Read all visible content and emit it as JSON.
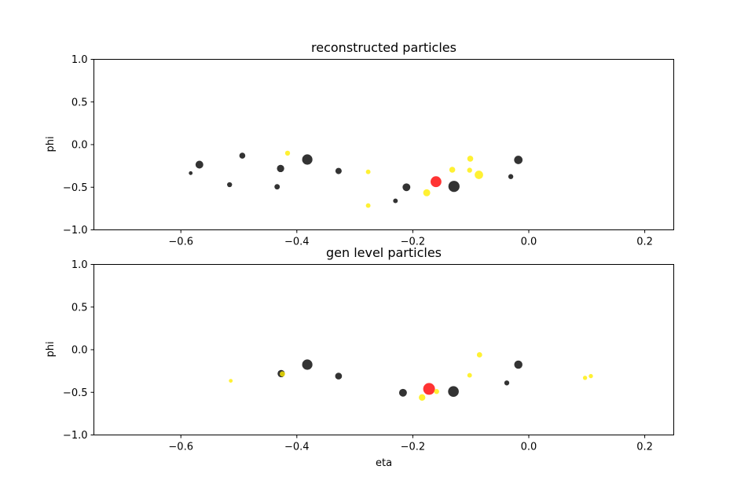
{
  "colors": {
    "charged": "#000000",
    "photon": "#ffee00",
    "leading": "#ff0000"
  },
  "chart_data": [
    {
      "type": "scatter",
      "title": "reconstructed particles",
      "xlabel": "",
      "ylabel": "phi",
      "xlim": [
        -0.75,
        0.25
      ],
      "ylim": [
        -1.0,
        1.0
      ],
      "xticks": [
        -0.6,
        -0.4,
        -0.2,
        0.0,
        0.2
      ],
      "xtick_labels": [
        "−0.6",
        "−0.4",
        "−0.2",
        "0.0",
        "0.2"
      ],
      "yticks": [
        1.0,
        0.5,
        0.0,
        -0.5,
        -1.0
      ],
      "ytick_labels": [
        "1.0",
        "0.5",
        "0.0",
        "−0.5",
        "−1.0"
      ],
      "grid": false,
      "marker_size_encodes": "particle pT (relative)",
      "points": [
        {
          "eta": -0.583,
          "phi": -0.335,
          "size": 0.4,
          "kind": "charged"
        },
        {
          "eta": -0.568,
          "phi": -0.235,
          "size": 1.7,
          "kind": "charged"
        },
        {
          "eta": -0.516,
          "phi": -0.47,
          "size": 0.7,
          "kind": "charged"
        },
        {
          "eta": -0.494,
          "phi": -0.13,
          "size": 1.0,
          "kind": "charged"
        },
        {
          "eta": -0.434,
          "phi": -0.495,
          "size": 0.8,
          "kind": "charged"
        },
        {
          "eta": -0.428,
          "phi": -0.28,
          "size": 1.5,
          "kind": "charged"
        },
        {
          "eta": -0.416,
          "phi": -0.1,
          "size": 0.7,
          "kind": "photon"
        },
        {
          "eta": -0.382,
          "phi": -0.175,
          "size": 3.0,
          "kind": "charged"
        },
        {
          "eta": -0.328,
          "phi": -0.31,
          "size": 1.1,
          "kind": "charged"
        },
        {
          "eta": -0.277,
          "phi": -0.32,
          "size": 0.6,
          "kind": "photon"
        },
        {
          "eta": -0.277,
          "phi": -0.715,
          "size": 0.6,
          "kind": "photon"
        },
        {
          "eta": -0.23,
          "phi": -0.66,
          "size": 0.6,
          "kind": "charged"
        },
        {
          "eta": -0.211,
          "phi": -0.5,
          "size": 1.7,
          "kind": "charged"
        },
        {
          "eta": -0.176,
          "phi": -0.565,
          "size": 1.4,
          "kind": "photon"
        },
        {
          "eta": -0.16,
          "phi": -0.435,
          "size": 3.3,
          "kind": "leading"
        },
        {
          "eta": -0.132,
          "phi": -0.295,
          "size": 1.0,
          "kind": "photon"
        },
        {
          "eta": -0.129,
          "phi": -0.49,
          "size": 3.5,
          "kind": "charged"
        },
        {
          "eta": -0.102,
          "phi": -0.3,
          "size": 0.7,
          "kind": "photon"
        },
        {
          "eta": -0.101,
          "phi": -0.165,
          "size": 1.0,
          "kind": "photon"
        },
        {
          "eta": -0.086,
          "phi": -0.355,
          "size": 2.0,
          "kind": "photon"
        },
        {
          "eta": -0.031,
          "phi": -0.375,
          "size": 0.7,
          "kind": "charged"
        },
        {
          "eta": -0.018,
          "phi": -0.18,
          "size": 2.0,
          "kind": "charged"
        }
      ]
    },
    {
      "type": "scatter",
      "title": "gen level particles",
      "xlabel": "eta",
      "ylabel": "phi",
      "xlim": [
        -0.75,
        0.25
      ],
      "ylim": [
        -1.0,
        1.0
      ],
      "xticks": [
        -0.6,
        -0.4,
        -0.2,
        0.0,
        0.2
      ],
      "xtick_labels": [
        "−0.6",
        "−0.4",
        "−0.2",
        "0.0",
        "0.2"
      ],
      "yticks": [
        1.0,
        0.5,
        0.0,
        -0.5,
        -1.0
      ],
      "ytick_labels": [
        "1.0",
        "0.5",
        "0.0",
        "−0.5",
        "−1.0"
      ],
      "grid": false,
      "marker_size_encodes": "particle pT (relative)",
      "points": [
        {
          "eta": -0.514,
          "phi": -0.365,
          "size": 0.4,
          "kind": "photon"
        },
        {
          "eta": -0.427,
          "phi": -0.28,
          "size": 1.5,
          "kind": "charged"
        },
        {
          "eta": -0.425,
          "phi": -0.285,
          "size": 0.8,
          "kind": "photon"
        },
        {
          "eta": -0.382,
          "phi": -0.175,
          "size": 3.0,
          "kind": "charged"
        },
        {
          "eta": -0.328,
          "phi": -0.31,
          "size": 1.3,
          "kind": "charged"
        },
        {
          "eta": -0.217,
          "phi": -0.505,
          "size": 1.7,
          "kind": "charged"
        },
        {
          "eta": -0.184,
          "phi": -0.56,
          "size": 1.2,
          "kind": "photon"
        },
        {
          "eta": -0.172,
          "phi": -0.46,
          "size": 3.9,
          "kind": "leading"
        },
        {
          "eta": -0.159,
          "phi": -0.49,
          "size": 0.7,
          "kind": "photon"
        },
        {
          "eta": -0.13,
          "phi": -0.49,
          "size": 3.2,
          "kind": "charged"
        },
        {
          "eta": -0.102,
          "phi": -0.3,
          "size": 0.6,
          "kind": "photon"
        },
        {
          "eta": -0.085,
          "phi": -0.06,
          "size": 0.8,
          "kind": "photon"
        },
        {
          "eta": -0.038,
          "phi": -0.39,
          "size": 0.7,
          "kind": "charged"
        },
        {
          "eta": -0.018,
          "phi": -0.175,
          "size": 1.9,
          "kind": "charged"
        },
        {
          "eta": 0.097,
          "phi": -0.33,
          "size": 0.5,
          "kind": "photon"
        },
        {
          "eta": 0.107,
          "phi": -0.31,
          "size": 0.5,
          "kind": "photon"
        }
      ]
    }
  ]
}
